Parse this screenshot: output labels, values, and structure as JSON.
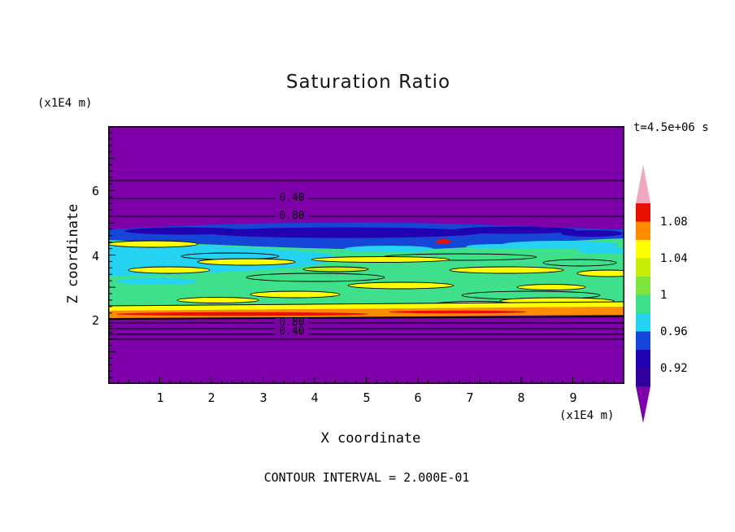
{
  "palette": {
    "purple": "#7D00A8",
    "navy": "#2202B0",
    "blue": "#1646D8",
    "cyan": "#24D2F2",
    "green": "#3EE08C",
    "lightgreen": "#7FE43C",
    "ygreen": "#C8EC0A",
    "yellow": "#FFFF00",
    "orange": "#FF8C00",
    "red": "#E81000",
    "pink": "#F0A8C0",
    "line": "#000000"
  },
  "header": {
    "title": "Saturation Ratio",
    "time_label": "t=4.5e+06 s"
  },
  "axes": {
    "y_label": "Z coordinate",
    "y_units": "(x1E4 m)",
    "x_label": "X coordinate",
    "x_units": "(x1E4 m)",
    "x_ticks": [
      "1",
      "2",
      "3",
      "4",
      "5",
      "6",
      "7",
      "8",
      "9"
    ],
    "y_ticks": [
      "2",
      "4",
      "6"
    ]
  },
  "footer": {
    "contour_note": "CONTOUR INTERVAL = 2.000E-01"
  },
  "colorbar": {
    "ticks": [
      "1.08",
      "1.04",
      "1",
      "0.96",
      "0.92"
    ],
    "segment_colors": [
      "#E81000",
      "#FF8C00",
      "#FFFF00",
      "#C8EC0A",
      "#7FE43C",
      "#3EE08C",
      "#24D2F2",
      "#1646D8",
      "#2202B0",
      "#33009C"
    ]
  },
  "contour_labels": {
    "top_040": "0.40",
    "top_080": "0.80",
    "bottom_080": "0.80",
    "bottom_040": "0.40"
  },
  "chart_data": {
    "type": "heatmap",
    "subtype": "filled-contour",
    "title": "Saturation Ratio",
    "xlabel": "X coordinate",
    "ylabel": "Z coordinate",
    "x_units": "(x1E4 m)",
    "y_units": "(x1E4 m)",
    "xlim": [
      0,
      10
    ],
    "ylim": [
      0,
      8
    ],
    "x_ticks": [
      1,
      2,
      3,
      4,
      5,
      6,
      7,
      8,
      9
    ],
    "y_ticks": [
      2,
      4,
      6
    ],
    "time": "t=4.5e+06 s",
    "contour_interval": "2.000E-01",
    "colorbar_ticks": [
      1.08,
      1.04,
      1,
      0.96,
      0.92
    ],
    "labeled_line_contours": [
      {
        "value": 0.4,
        "approx_z": 5.8,
        "region": "above main band"
      },
      {
        "value": 0.8,
        "approx_z": 5.2,
        "region": "above main band"
      },
      {
        "value": 0.8,
        "approx_z": 1.9,
        "region": "below main band"
      },
      {
        "value": 0.4,
        "approx_z": 1.7,
        "region": "below main band"
      }
    ],
    "bands": [
      {
        "z_from": 5.0,
        "z_to": 8.0,
        "description": "uniform purple region, saturation ratio well below 0.4 increasing downward (contours 0.40 and 0.80 near z=5.8 and z=5.2)"
      },
      {
        "z_from": 4.2,
        "z_to": 5.0,
        "description": "wavy dark blue band across full width, saturation ratio ~0.88-0.94"
      },
      {
        "z_from": 3.2,
        "z_to": 4.4,
        "description": "cyan patches ~0.94-0.98, largest on left half"
      },
      {
        "z_from": 2.2,
        "z_to": 4.2,
        "description": "broad green band ~0.98-1.02 with horizontal yellow streak lenses ~1.02-1.06 and a few tiny red spots"
      },
      {
        "z_from": 2.0,
        "z_to": 2.3,
        "description": "thin yellow-orange band with red streaks, saturation ratio ~1.04-1.10"
      },
      {
        "z_from": 0.0,
        "z_to": 2.0,
        "description": "uniform purple region below main band, values below 0.4 (contours 0.80 and 0.40 near z=1.9 and z=1.7)"
      }
    ]
  }
}
